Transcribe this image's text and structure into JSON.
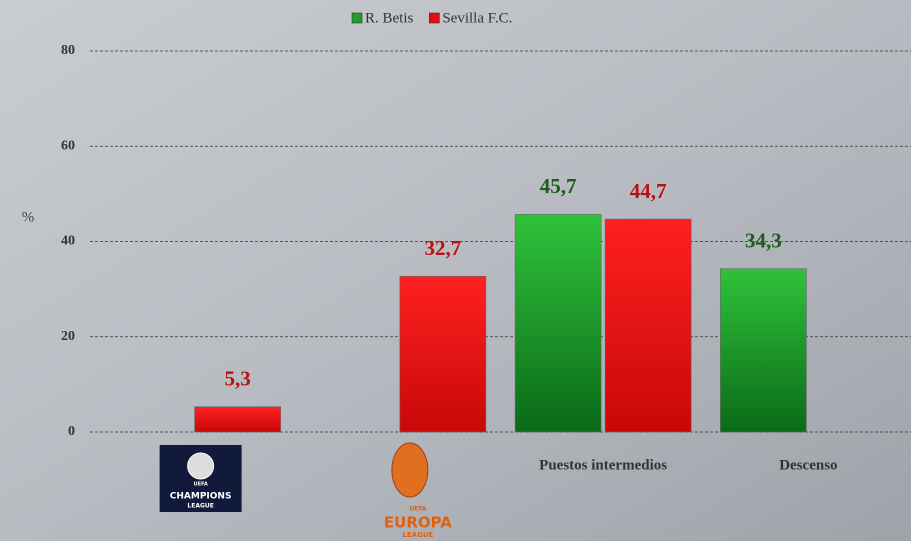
{
  "chart_data": {
    "type": "bar",
    "y_label": "%",
    "categories": [
      null,
      null,
      "Puestos intermedios",
      "Descenso"
    ],
    "category_logos": [
      [
        "UEFA",
        "CHAMPIONS",
        "LEAGUE"
      ],
      [
        "UEFA",
        "EUROPA",
        "LEAGUE"
      ],
      null,
      null
    ],
    "series": [
      {
        "name": "R. Betis",
        "color": "#1e9e2a",
        "values": [
          null,
          null,
          45.7,
          34.3
        ],
        "value_labels": [
          null,
          null,
          "45,7",
          "34,3"
        ],
        "label_color": "#1a5e1a"
      },
      {
        "name": "Sevilla F.C.",
        "color": "#e01010",
        "values": [
          5.3,
          32.7,
          44.7,
          null
        ],
        "value_labels": [
          "5,3",
          "32,7",
          "44,7",
          null
        ],
        "label_color": "#b81010"
      }
    ],
    "ylim": [
      0,
      80
    ],
    "yticks": [
      0,
      20,
      40,
      60,
      80
    ],
    "grid": true,
    "legend": "top"
  }
}
